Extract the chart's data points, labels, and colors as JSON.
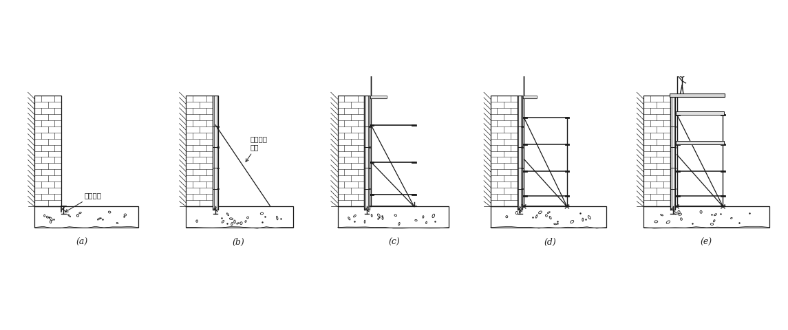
{
  "labels": [
    "(a)",
    "(b)",
    "(c)",
    "(d)",
    "(e)"
  ],
  "label_a": "地脚螺栓",
  "label_b1": "现场临时\n支撑",
  "bg_color": "#ffffff",
  "line_color": "#1a1a1a",
  "lw_main": 0.9,
  "lw_thin": 0.5,
  "lw_thick": 1.4
}
